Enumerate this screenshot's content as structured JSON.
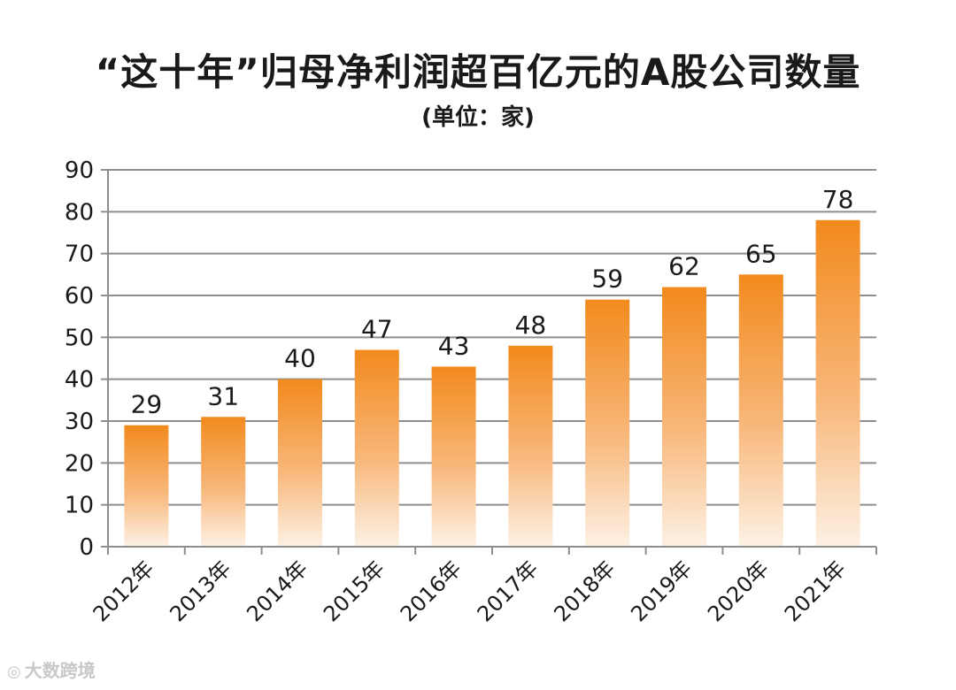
{
  "chart_data": {
    "type": "bar",
    "title": "“这十年”归母净利润超百亿元的A股公司数量",
    "subtitle": "(单位：家)",
    "categories": [
      "2012年",
      "2013年",
      "2014年",
      "2015年",
      "2016年",
      "2017年",
      "2018年",
      "2019年",
      "2020年",
      "2021年"
    ],
    "values": [
      29,
      31,
      40,
      47,
      43,
      48,
      59,
      62,
      65,
      78
    ],
    "ylim": [
      0,
      90
    ],
    "yticks": [
      0,
      10,
      20,
      30,
      40,
      50,
      60,
      70,
      80,
      90
    ],
    "xlabel": "",
    "ylabel": "",
    "grid": true,
    "bar_color_top": "#f28a1d",
    "bar_color_bottom": "#fdf1e4",
    "grid_color": "#8e8e8e"
  },
  "watermark": {
    "text": "大数跨境",
    "icon": "logo-icon"
  }
}
